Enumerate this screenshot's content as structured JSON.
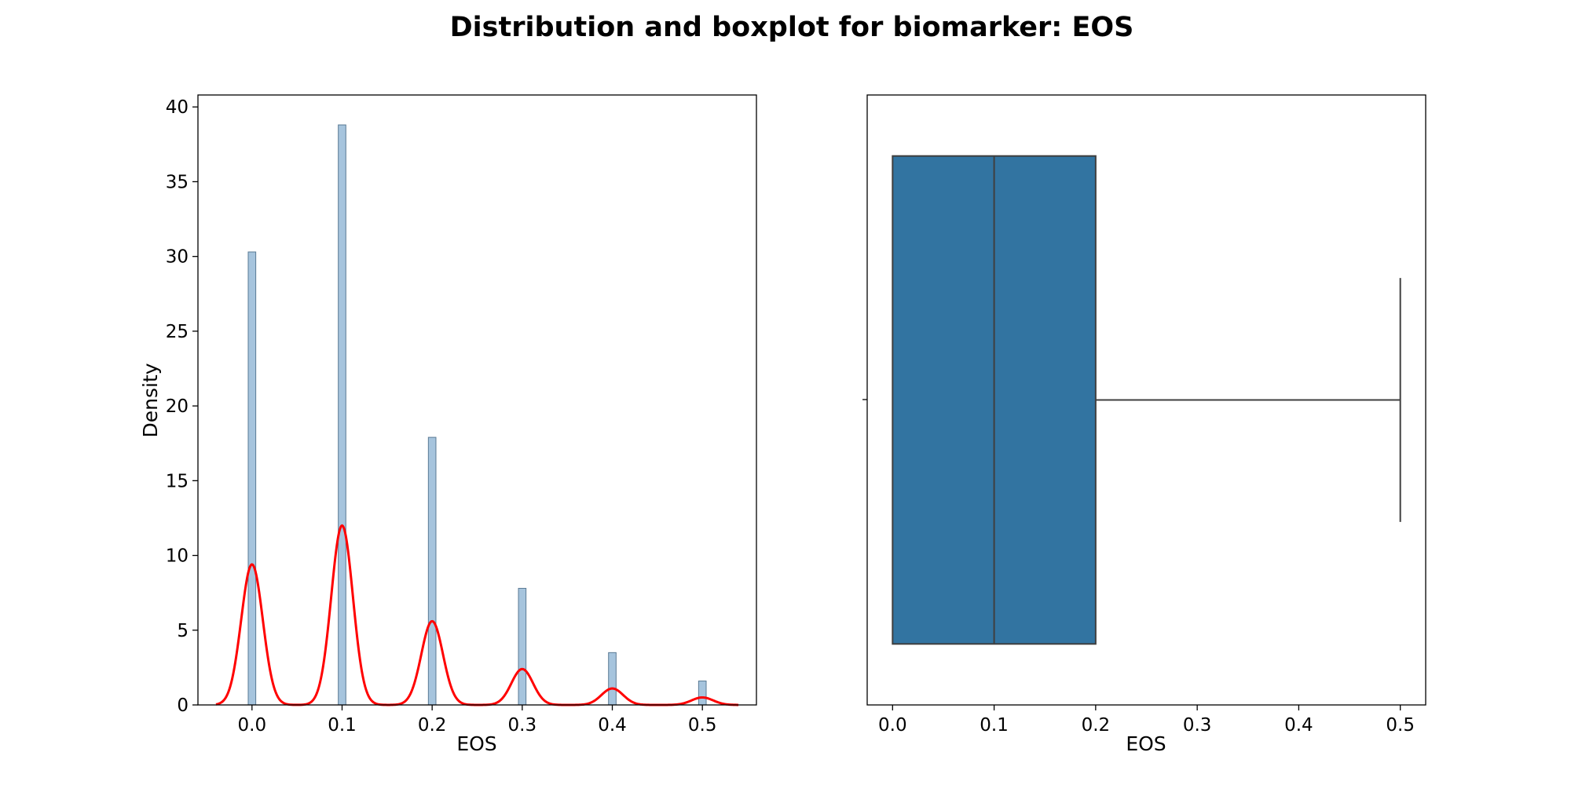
{
  "figure": {
    "title": "Distribution and boxplot for biomarker: EOS"
  },
  "chart_data": [
    {
      "type": "bar",
      "subtype": "histogram_with_kde",
      "title": "",
      "xlabel": "EOS",
      "ylabel": "Density",
      "xlim": [
        -0.06,
        0.56
      ],
      "ylim": [
        0,
        40.8
      ],
      "x_ticks": [
        0.0,
        0.1,
        0.2,
        0.3,
        0.4,
        0.5
      ],
      "x_tick_labels": [
        "0.0",
        "0.1",
        "0.2",
        "0.3",
        "0.4",
        "0.5"
      ],
      "y_ticks": [
        0,
        5,
        10,
        15,
        20,
        25,
        30,
        35,
        40
      ],
      "y_tick_labels": [
        "0",
        "5",
        "10",
        "15",
        "20",
        "25",
        "30",
        "35",
        "40"
      ],
      "bin_width": 0.01,
      "bars": [
        {
          "x": 0.0,
          "density": 30.3
        },
        {
          "x": 0.1,
          "density": 38.8
        },
        {
          "x": 0.2,
          "density": 17.9
        },
        {
          "x": 0.3,
          "density": 7.8
        },
        {
          "x": 0.4,
          "density": 3.5
        },
        {
          "x": 0.5,
          "density": 1.6
        }
      ],
      "kde": {
        "x_range": [
          -0.04,
          0.54
        ],
        "peaks": [
          {
            "x": 0.0,
            "density": 9.4
          },
          {
            "x": 0.1,
            "density": 12.0
          },
          {
            "x": 0.2,
            "density": 5.6
          },
          {
            "x": 0.3,
            "density": 2.4
          },
          {
            "x": 0.4,
            "density": 1.1
          },
          {
            "x": 0.5,
            "density": 0.5
          }
        ],
        "peak_sigma": 0.012
      },
      "colors": {
        "bar_fill": "#a6c4dd",
        "bar_edge": "#5a7a94",
        "kde": "#ff0000"
      },
      "grid": false,
      "legend": "none"
    },
    {
      "type": "boxplot",
      "title": "",
      "xlabel": "EOS",
      "ylabel": "",
      "xlim": [
        -0.025,
        0.525
      ],
      "x_ticks": [
        0.0,
        0.1,
        0.2,
        0.3,
        0.4,
        0.5
      ],
      "x_tick_labels": [
        "0.0",
        "0.1",
        "0.2",
        "0.3",
        "0.4",
        "0.5"
      ],
      "box": {
        "whisker_low": 0.0,
        "q1": 0.0,
        "median": 0.1,
        "q3": 0.2,
        "whisker_high": 0.5
      },
      "colors": {
        "box_fill": "#3274a1",
        "line": "#3f3f3f"
      },
      "grid": false,
      "legend": "none"
    }
  ]
}
